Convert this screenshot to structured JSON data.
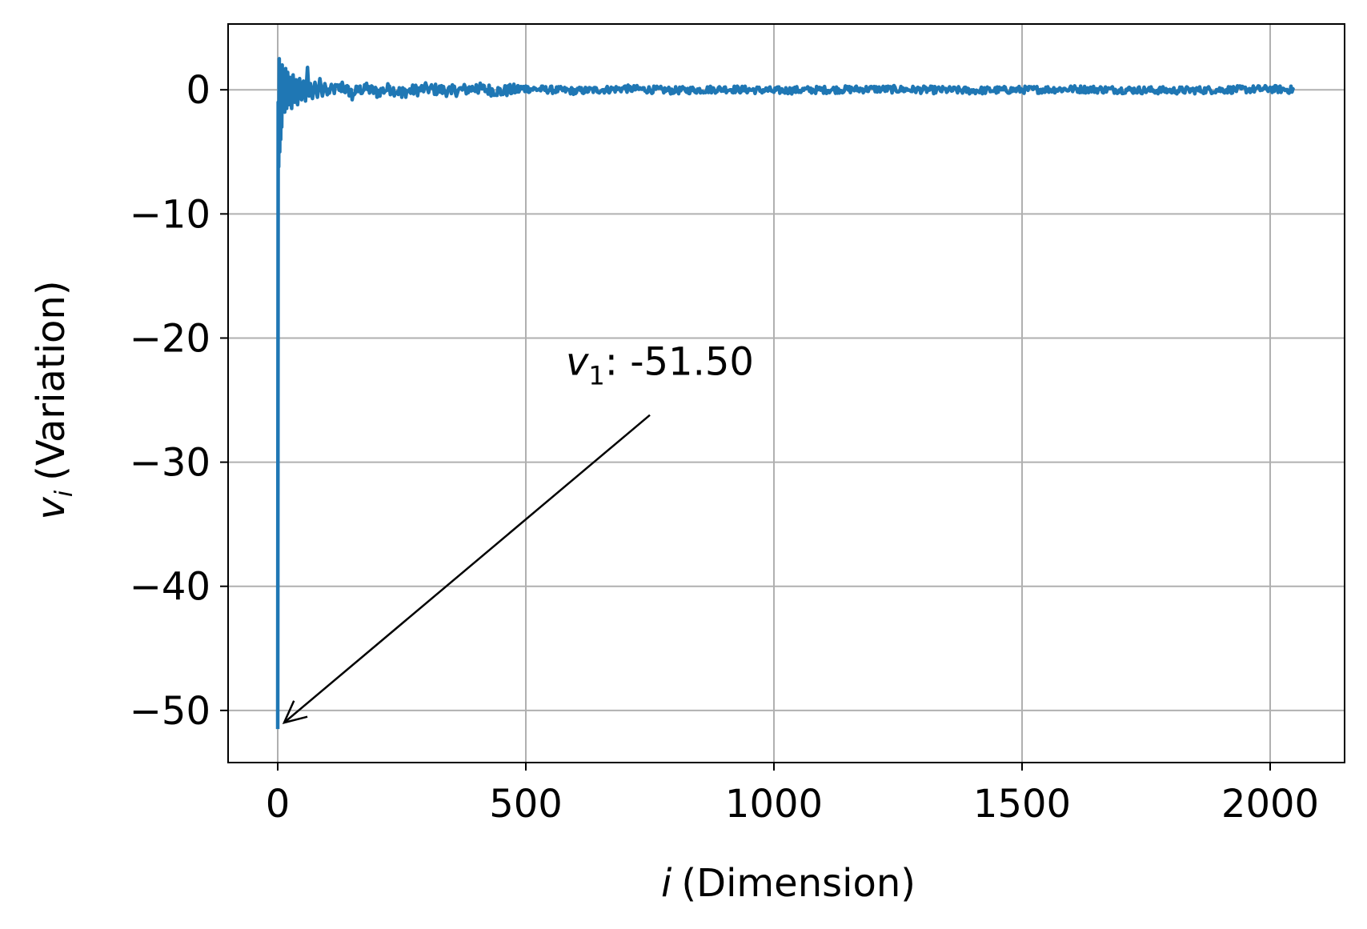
{
  "chart_data": {
    "type": "line",
    "xlabel": "(Dimension)",
    "xlabel_var": "i",
    "ylabel": "(Variation)",
    "ylabel_var": "v",
    "ylabel_sub": "i",
    "xlim": [
      -100,
      2150
    ],
    "ylim": [
      -54.2,
      5.3
    ],
    "xticks": [
      0,
      500,
      1000,
      1500,
      2000
    ],
    "xtick_labels": [
      "0",
      "500",
      "1000",
      "1500",
      "2000"
    ],
    "yticks": [
      0,
      -10,
      -20,
      -30,
      -40,
      -50
    ],
    "ytick_labels": [
      "0",
      "−10",
      "−20",
      "−30",
      "−40",
      "−50"
    ],
    "grid": true,
    "series": [
      {
        "color": "#1f77b4",
        "n_points": 2048,
        "x_range": [
          0,
          2047
        ],
        "points": [
          [
            0,
            -51.5
          ],
          [
            1,
            -1.0
          ],
          [
            2,
            -6.2
          ],
          [
            3,
            2.5
          ],
          [
            4,
            -5.0
          ],
          [
            5,
            1.8
          ],
          [
            6,
            -4.0
          ],
          [
            7,
            1.2
          ],
          [
            8,
            -3.0
          ],
          [
            9,
            2.0
          ],
          [
            10,
            -1.5
          ],
          [
            12,
            1.5
          ],
          [
            14,
            -1.8
          ],
          [
            16,
            1.7
          ],
          [
            18,
            -1.5
          ],
          [
            20,
            1.4
          ],
          [
            22,
            -1.2
          ],
          [
            25,
            1.0
          ],
          [
            28,
            -1.5
          ],
          [
            31,
            1.2
          ],
          [
            34,
            -1.0
          ],
          [
            37,
            0.8
          ],
          [
            40,
            -1.2
          ],
          [
            44,
            0.9
          ],
          [
            48,
            -0.8
          ],
          [
            52,
            0.7
          ],
          [
            56,
            -0.9
          ],
          [
            60,
            1.8
          ],
          [
            63,
            -0.5
          ],
          [
            66,
            0.5
          ],
          [
            70,
            -0.7
          ],
          [
            75,
            0.6
          ],
          [
            80,
            -0.6
          ],
          [
            85,
            0.9
          ],
          [
            90,
            -0.5
          ],
          [
            95,
            0.5
          ],
          [
            100,
            -0.4
          ],
          [
            130,
            0.6
          ],
          [
            150,
            -0.8
          ],
          [
            175,
            0.4
          ],
          [
            200,
            -0.6
          ],
          [
            225,
            0.3
          ],
          [
            250,
            -0.6
          ],
          [
            300,
            0.3
          ],
          [
            350,
            -0.3
          ],
          [
            400,
            0.4
          ],
          [
            450,
            -0.4
          ],
          [
            500,
            0.3
          ],
          [
            600,
            -0.3
          ],
          [
            700,
            0.3
          ],
          [
            800,
            -0.2
          ],
          [
            900,
            0.2
          ],
          [
            1000,
            -0.2
          ],
          [
            1200,
            0.2
          ],
          [
            1400,
            -0.2
          ],
          [
            1600,
            0.2
          ],
          [
            1800,
            -0.2
          ],
          [
            2000,
            0.2
          ],
          [
            2047,
            0.0
          ]
        ],
        "tail_noise_amplitude": 0.3
      }
    ],
    "annotations": [
      {
        "var": "v",
        "sub": "1",
        "text": ": -51.50",
        "x": 750,
        "y": -26.2,
        "arrow_to": [
          0,
          -51.5
        ]
      }
    ]
  }
}
